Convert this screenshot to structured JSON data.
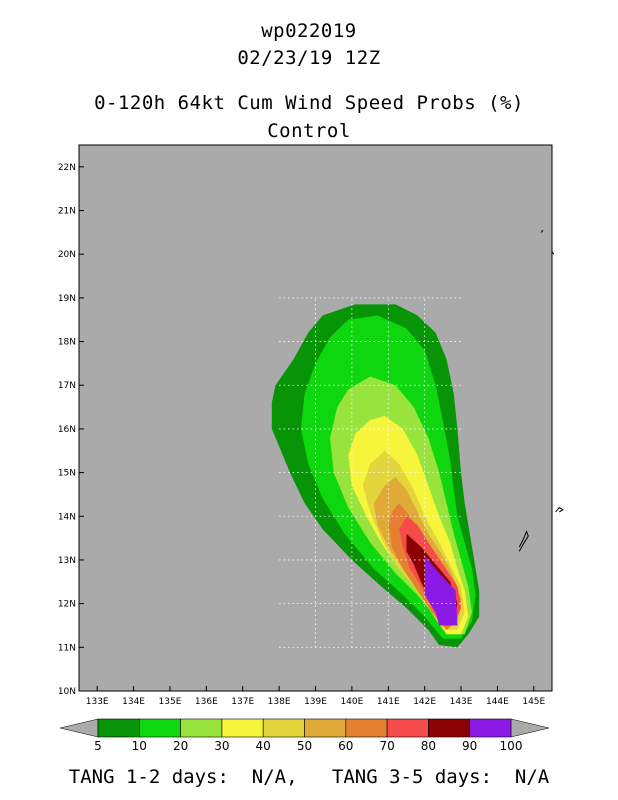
{
  "header": {
    "storm_id": "wp022019",
    "datetime": "02/23/19 12Z",
    "product": "0-120h 64kt Cum Wind Speed Probs (%)",
    "member": "Control"
  },
  "footer": {
    "text": "TANG 1-2 days:  N/A,   TANG 3-5 days:  N/A"
  },
  "colors": {
    "background": "#aaaaaa",
    "levels": [
      "#079407",
      "#0fd70f",
      "#99e43c",
      "#f7f53b",
      "#e3d53c",
      "#dfaa37",
      "#e58031",
      "#f54b4b",
      "#8b0000",
      "#8b1ae5"
    ]
  },
  "chart_data": {
    "type": "heatmap",
    "title": "0-120h 64kt Cum Wind Speed Probs (%)",
    "subtitle": "Control",
    "x_axis": {
      "min": 132.5,
      "max": 145.5,
      "ticks": [
        133,
        134,
        135,
        136,
        137,
        138,
        139,
        140,
        141,
        142,
        143,
        144,
        145
      ],
      "tick_labels": [
        "133E",
        "134E",
        "135E",
        "136E",
        "137E",
        "138E",
        "139E",
        "140E",
        "141E",
        "142E",
        "143E",
        "144E",
        "145E"
      ]
    },
    "y_axis": {
      "min": 10,
      "max": 22.5,
      "ticks": [
        10,
        11,
        12,
        13,
        14,
        15,
        16,
        17,
        18,
        19,
        20,
        21,
        22
      ],
      "tick_labels": [
        "10N",
        "11N",
        "12N",
        "13N",
        "14N",
        "15N",
        "16N",
        "17N",
        "18N",
        "19N",
        "20N",
        "21N",
        "22N"
      ]
    },
    "grid": true,
    "colorbar": {
      "levels": [
        5,
        10,
        20,
        30,
        40,
        50,
        60,
        70,
        80,
        90,
        100
      ],
      "labels": [
        "5",
        "10",
        "20",
        "30",
        "40",
        "50",
        "60",
        "70",
        "80",
        "90",
        "100"
      ]
    },
    "contours": [
      {
        "level": 5,
        "points": [
          [
            139.9,
            18.8
          ],
          [
            140.1,
            18.85
          ],
          [
            141.2,
            18.85
          ],
          [
            141.8,
            18.6
          ],
          [
            142.3,
            18.2
          ],
          [
            142.6,
            17.6
          ],
          [
            142.8,
            16.8
          ],
          [
            142.9,
            16.0
          ],
          [
            143.0,
            15.0
          ],
          [
            143.1,
            14.3
          ],
          [
            143.2,
            13.8
          ],
          [
            143.3,
            13.3
          ],
          [
            143.4,
            12.8
          ],
          [
            143.5,
            12.3
          ],
          [
            143.5,
            11.7
          ],
          [
            143.2,
            11.3
          ],
          [
            142.9,
            11.0
          ],
          [
            142.4,
            11.05
          ],
          [
            142.1,
            11.4
          ],
          [
            141.5,
            11.9
          ],
          [
            140.8,
            12.4
          ],
          [
            140.0,
            13.0
          ],
          [
            139.2,
            13.7
          ],
          [
            138.7,
            14.3
          ],
          [
            138.3,
            15.0
          ],
          [
            138.0,
            15.6
          ],
          [
            137.8,
            16.0
          ],
          [
            137.8,
            16.6
          ],
          [
            137.9,
            17.0
          ],
          [
            138.4,
            17.6
          ],
          [
            138.8,
            18.2
          ],
          [
            139.2,
            18.6
          ]
        ]
      },
      {
        "level": 10,
        "points": [
          [
            139.9,
            18.5
          ],
          [
            140.7,
            18.6
          ],
          [
            141.5,
            18.3
          ],
          [
            142.0,
            17.8
          ],
          [
            142.3,
            17.0
          ],
          [
            142.5,
            16.2
          ],
          [
            142.7,
            15.3
          ],
          [
            142.8,
            14.6
          ],
          [
            142.9,
            14.0
          ],
          [
            143.1,
            13.4
          ],
          [
            143.3,
            12.8
          ],
          [
            143.4,
            12.2
          ],
          [
            143.3,
            11.6
          ],
          [
            143.0,
            11.2
          ],
          [
            142.5,
            11.2
          ],
          [
            142.0,
            11.7
          ],
          [
            141.4,
            12.2
          ],
          [
            140.6,
            12.8
          ],
          [
            139.8,
            13.6
          ],
          [
            139.2,
            14.4
          ],
          [
            138.8,
            15.2
          ],
          [
            138.6,
            16.0
          ],
          [
            138.7,
            16.8
          ],
          [
            139.0,
            17.5
          ],
          [
            139.4,
            18.1
          ]
        ]
      },
      {
        "level": 20,
        "points": [
          [
            140.5,
            17.2
          ],
          [
            141.2,
            17.0
          ],
          [
            141.7,
            16.5
          ],
          [
            142.1,
            15.8
          ],
          [
            142.4,
            15.0
          ],
          [
            142.6,
            14.3
          ],
          [
            142.8,
            13.6
          ],
          [
            143.0,
            13.0
          ],
          [
            143.2,
            12.4
          ],
          [
            143.3,
            11.8
          ],
          [
            143.1,
            11.3
          ],
          [
            142.7,
            11.3
          ],
          [
            142.3,
            11.7
          ],
          [
            141.8,
            12.2
          ],
          [
            141.2,
            12.7
          ],
          [
            140.5,
            13.4
          ],
          [
            139.9,
            14.2
          ],
          [
            139.5,
            15.0
          ],
          [
            139.4,
            15.8
          ],
          [
            139.6,
            16.5
          ],
          [
            139.9,
            16.9
          ]
        ]
      },
      {
        "level": 30,
        "points": [
          [
            140.9,
            16.3
          ],
          [
            141.4,
            16.0
          ],
          [
            141.8,
            15.4
          ],
          [
            142.1,
            14.7
          ],
          [
            142.4,
            14.0
          ],
          [
            142.7,
            13.4
          ],
          [
            142.9,
            12.8
          ],
          [
            143.1,
            12.3
          ],
          [
            143.2,
            11.7
          ],
          [
            143.0,
            11.3
          ],
          [
            142.6,
            11.3
          ],
          [
            142.2,
            11.8
          ],
          [
            141.8,
            12.3
          ],
          [
            141.3,
            12.8
          ],
          [
            140.8,
            13.4
          ],
          [
            140.4,
            14.0
          ],
          [
            140.0,
            14.7
          ],
          [
            139.9,
            15.4
          ],
          [
            140.1,
            15.9
          ],
          [
            140.5,
            16.2
          ]
        ]
      },
      {
        "level": 40,
        "points": [
          [
            140.9,
            15.5
          ],
          [
            141.3,
            15.2
          ],
          [
            141.7,
            14.6
          ],
          [
            142.0,
            14.0
          ],
          [
            142.4,
            13.4
          ],
          [
            142.7,
            12.9
          ],
          [
            143.0,
            12.4
          ],
          [
            143.1,
            11.8
          ],
          [
            142.9,
            11.4
          ],
          [
            142.5,
            11.4
          ],
          [
            142.1,
            11.9
          ],
          [
            141.7,
            12.4
          ],
          [
            141.2,
            12.9
          ],
          [
            140.8,
            13.5
          ],
          [
            140.5,
            14.1
          ],
          [
            140.3,
            14.7
          ],
          [
            140.5,
            15.2
          ]
        ]
      },
      {
        "level": 50,
        "points": [
          [
            141.2,
            14.9
          ],
          [
            141.5,
            14.6
          ],
          [
            141.8,
            14.1
          ],
          [
            142.1,
            13.6
          ],
          [
            142.5,
            13.1
          ],
          [
            142.8,
            12.6
          ],
          [
            143.0,
            12.1
          ],
          [
            142.9,
            11.6
          ],
          [
            142.6,
            11.4
          ],
          [
            142.2,
            11.8
          ],
          [
            141.8,
            12.3
          ],
          [
            141.4,
            12.8
          ],
          [
            141.0,
            13.3
          ],
          [
            140.7,
            13.8
          ],
          [
            140.6,
            14.3
          ],
          [
            140.9,
            14.7
          ]
        ]
      },
      {
        "level": 60,
        "points": [
          [
            141.3,
            14.3
          ],
          [
            141.6,
            14.0
          ],
          [
            141.9,
            13.6
          ],
          [
            142.3,
            13.1
          ],
          [
            142.7,
            12.6
          ],
          [
            143.0,
            12.1
          ],
          [
            142.9,
            11.6
          ],
          [
            142.6,
            11.4
          ],
          [
            142.2,
            11.8
          ],
          [
            141.8,
            12.3
          ],
          [
            141.4,
            12.8
          ],
          [
            141.1,
            13.3
          ],
          [
            141.0,
            13.8
          ],
          [
            141.1,
            14.1
          ]
        ]
      },
      {
        "level": 70,
        "points": [
          [
            141.5,
            14.0
          ],
          [
            141.8,
            13.8
          ],
          [
            142.1,
            13.4
          ],
          [
            142.5,
            12.9
          ],
          [
            142.9,
            12.4
          ],
          [
            143.0,
            11.9
          ],
          [
            142.8,
            11.5
          ],
          [
            142.5,
            11.5
          ],
          [
            142.2,
            11.9
          ],
          [
            141.9,
            12.4
          ],
          [
            141.6,
            12.8
          ],
          [
            141.4,
            13.3
          ],
          [
            141.3,
            13.7
          ]
        ]
      },
      {
        "level": 80,
        "points": [
          [
            141.5,
            13.6
          ],
          [
            141.9,
            13.3
          ],
          [
            142.3,
            12.9
          ],
          [
            142.7,
            12.5
          ],
          [
            142.9,
            12.0
          ],
          [
            142.8,
            11.6
          ],
          [
            142.5,
            11.6
          ],
          [
            142.2,
            12.0
          ],
          [
            141.9,
            12.5
          ],
          [
            141.7,
            12.9
          ],
          [
            141.5,
            13.2
          ]
        ]
      },
      {
        "level": 90,
        "points": [
          [
            142.0,
            13.1
          ],
          [
            142.4,
            12.7
          ],
          [
            142.85,
            12.3
          ],
          [
            142.9,
            11.5
          ],
          [
            142.4,
            11.5
          ],
          [
            142.3,
            11.8
          ],
          [
            142.0,
            12.2
          ]
        ]
      }
    ],
    "land": [
      [
        [
          144.6,
          13.2
        ],
        [
          144.7,
          13.35
        ],
        [
          144.85,
          13.55
        ],
        [
          144.8,
          13.65
        ],
        [
          144.7,
          13.45
        ],
        [
          144.6,
          13.3
        ]
      ],
      [
        [
          145.6,
          14.1
        ],
        [
          145.7,
          14.2
        ],
        [
          145.8,
          14.15
        ],
        [
          145.7,
          14.1
        ]
      ],
      [
        [
          145.2,
          20.5
        ],
        [
          145.25,
          20.55
        ]
      ],
      [
        [
          145.5,
          20.05
        ],
        [
          145.55,
          20.0
        ]
      ]
    ]
  }
}
